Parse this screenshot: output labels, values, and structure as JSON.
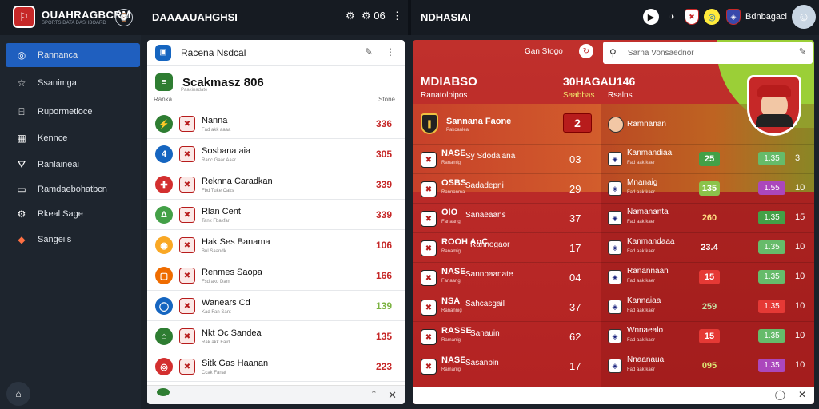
{
  "app": {
    "brand": "OUAHRAGBCRM",
    "brand_sub": "SPORTS DATA DASHBOARD",
    "left_title": "DAAAAUAHGHSI",
    "left_controls": "⚙ 06",
    "right_title": "NDHASIAI",
    "user_name": "Bdnbagacl"
  },
  "sidebar": {
    "items": [
      {
        "label": "Rannanca",
        "icon": "globe-icon",
        "glyph": "◎"
      },
      {
        "label": "Ssanimga",
        "icon": "star-icon",
        "glyph": "☆"
      },
      {
        "label": "Rupormetioce",
        "icon": "chart-icon",
        "glyph": "⌸"
      },
      {
        "label": "Kennce",
        "icon": "grid-icon",
        "glyph": "▦"
      },
      {
        "label": "Ranlaineai",
        "icon": "funnel-icon",
        "glyph": "⛛"
      },
      {
        "label": "Ramdaebohatbcn",
        "icon": "monitor-icon",
        "glyph": "▭"
      },
      {
        "label": "Rkeal Sage",
        "icon": "gear-icon",
        "glyph": "⚙"
      },
      {
        "label": "Sangeiis",
        "icon": "shield-icon",
        "glyph": "◆"
      }
    ]
  },
  "mid": {
    "header_title": "Racena Nsdcal",
    "title": "Scakmasz 806",
    "col_left": "Ranka",
    "col_right": "Stone",
    "subtitle": "Paakinadate",
    "rows": [
      {
        "name": "Nanna",
        "sub": "Fad akk aaaa",
        "value": "336",
        "icon_glyph": "⚡",
        "icon_color": "#2e7d32",
        "value_color": "#c62828"
      },
      {
        "name": "Sosbana aia",
        "sub": "Ranc Gaar Aaar",
        "value": "305",
        "icon_glyph": "4",
        "icon_color": "#1565c0",
        "value_color": "#c62828"
      },
      {
        "name": "Reknna Caradkan",
        "sub": "Fbd Tuke Caks",
        "value": "339",
        "icon_glyph": "✚",
        "icon_color": "#d32f2f",
        "value_color": "#c62828"
      },
      {
        "name": "Rlan Cent",
        "sub": "Tank Fbakfar",
        "value": "339",
        "icon_glyph": "Δ",
        "icon_color": "#43a047",
        "value_color": "#c62828"
      },
      {
        "name": "Hak Ses Banama",
        "sub": "Bul Saandk",
        "value": "106",
        "icon_glyph": "◉",
        "icon_color": "#f9a825",
        "value_color": "#c62828"
      },
      {
        "name": "Renmes Saopa",
        "sub": "Fsd ako Dam",
        "value": "166",
        "icon_glyph": "▢",
        "icon_color": "#ef6c00",
        "value_color": "#c62828"
      },
      {
        "name": "Wanears Cd",
        "sub": "Kad Fan Sant",
        "value": "139",
        "icon_glyph": "◯",
        "icon_color": "#1565c0",
        "value_color": "#7cb342"
      },
      {
        "name": "Nkt Oc Sandea",
        "sub": "Rak akk Faid",
        "value": "135",
        "icon_glyph": "⌂",
        "icon_color": "#2e7d32",
        "value_color": "#c62828"
      },
      {
        "name": "Sitk Gas Haanan",
        "sub": "Ccak Fanat",
        "value": "223",
        "icon_glyph": "◎",
        "icon_color": "#d32f2f",
        "value_color": "#c62828"
      }
    ]
  },
  "right": {
    "sort_label": "Gan Stogo",
    "search_placeholder": "Sarna Vonsaednor",
    "left_header": "MDIABSO",
    "left_header_sub": "Ranatoloipos",
    "mid_header": "30HAGAU146",
    "mid_header_sub": "Saabbas",
    "col_right_header": "Rsalns",
    "featured": {
      "name": "Sannana Faone",
      "sub": "Pakcanlea",
      "value": "2",
      "player": "Ramnanan"
    },
    "rows": [
      {
        "name": "NASE",
        "sub": "Ranamig",
        "desc": "Sy Sdodalana",
        "value": "03",
        "player": "Kanmandiaa",
        "psub": "Fad aak kaer",
        "pill": "25",
        "pill_bg": "#43a047",
        "pill_fg": "#fff",
        "odd": "1.35",
        "odd_bg": "#66bb6a",
        "extra": "3"
      },
      {
        "name": "OSBS",
        "sub": "Rannanma",
        "desc": "Sadadepni",
        "value": "29",
        "player": "Mnanaig",
        "psub": "Fad aak kaer",
        "pill": "135",
        "pill_bg": "#8bc34a",
        "pill_fg": "#fff",
        "odd": "1.55",
        "odd_bg": "#ab47bc",
        "extra": "10"
      },
      {
        "name": "OIO",
        "sub": "Fanaang",
        "desc": "Sanaeaans",
        "value": "37",
        "player": "Namananta",
        "psub": "Fad aak kaer",
        "pill": "260",
        "pill_bg": "transparent",
        "pill_fg": "#ffe082",
        "odd": "1.35",
        "odd_bg": "#43a047",
        "extra": "15"
      },
      {
        "name": "ROOH AoC",
        "sub": "Ranamig",
        "desc": "Rannogaor",
        "value": "17",
        "player": "Kanmandaaa",
        "psub": "Fad aak kaer",
        "pill": "23.4",
        "pill_bg": "transparent",
        "pill_fg": "#fff",
        "odd": "1.35",
        "odd_bg": "#66bb6a",
        "extra": "10"
      },
      {
        "name": "NASE",
        "sub": "Fanaang",
        "desc": "Sannbaanate",
        "value": "04",
        "player": "Ranannaan",
        "psub": "Fad aak kaer",
        "pill": "15",
        "pill_bg": "#e53935",
        "pill_fg": "#fff",
        "odd": "1.35",
        "odd_bg": "#66bb6a",
        "extra": "10"
      },
      {
        "name": "NSA",
        "sub": "Ranannig",
        "desc": "Sahcasgail",
        "value": "37",
        "player": "Kannaiaa",
        "psub": "Fad aak kaer",
        "pill": "259",
        "pill_bg": "transparent",
        "pill_fg": "#c5e1a5",
        "odd": "1.35",
        "odd_bg": "#e53935",
        "extra": "10"
      },
      {
        "name": "RASSE",
        "sub": "Ramanig",
        "desc": "Sanauin",
        "value": "62",
        "player": "Wnnaealo",
        "psub": "Fad aak kaer",
        "pill": "15",
        "pill_bg": "#e53935",
        "pill_fg": "#fff",
        "odd": "1.35",
        "odd_bg": "#66bb6a",
        "extra": "10"
      },
      {
        "name": "NASE",
        "sub": "Ramanig",
        "desc": "Sasanbin",
        "value": "17",
        "player": "Nnaanaua",
        "psub": "Fad aak kaer",
        "pill": "095",
        "pill_bg": "transparent",
        "pill_fg": "#dce775",
        "odd": "1.35",
        "odd_bg": "#ab47bc",
        "extra": "10"
      }
    ]
  }
}
